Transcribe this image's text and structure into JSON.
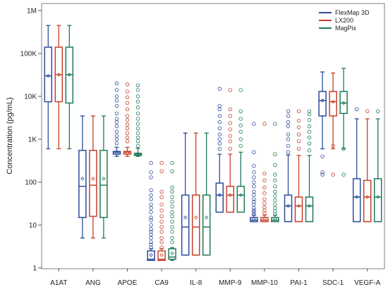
{
  "chart_data": {
    "type": "boxplot",
    "ylabel": "Concentration (pg/mL)",
    "yscale": "log",
    "ylim": [
      1,
      1000000
    ],
    "y_ticks": [
      1,
      10,
      100,
      1000,
      10000,
      100000,
      1000000
    ],
    "y_tick_labels": [
      "1",
      "10",
      "100",
      "1K",
      "10K",
      "100K",
      "1M"
    ],
    "grid": false,
    "legend_position": "top-right",
    "categories": [
      "A1AT",
      "ANG",
      "APOE",
      "CA9",
      "IL-8",
      "MMP-9",
      "MMP-10",
      "PAI-1",
      "SDC-1",
      "VEGF-A"
    ],
    "series": [
      {
        "name": "FlexMap 3D",
        "color": "#2c4c9c",
        "boxes": [
          {
            "whisker_low": 600,
            "q1": 7500,
            "median": 30000,
            "q3": 140000,
            "whisker_high": 450000,
            "mean": 30000,
            "outliers": []
          },
          {
            "whisker_low": 5,
            "q1": 15,
            "median": 80,
            "q3": 550,
            "whisker_high": 3500,
            "mean": 120,
            "outliers": []
          },
          {
            "whisker_low": 400,
            "q1": 450,
            "median": 500,
            "q3": 520,
            "whisker_high": 650,
            "mean": 480,
            "outliers": [
              800,
              1000,
              1200,
              1500,
              2000,
              2500,
              3000,
              4000,
              6000,
              8000,
              10000,
              14000,
              20000
            ]
          },
          {
            "whisker_low": 1.5,
            "q1": 1.5,
            "median": 1.6,
            "q3": 2.5,
            "whisker_high": 2.8,
            "mean": 2,
            "outliers": [
              3,
              3.5,
              4,
              5,
              6,
              7,
              8,
              10,
              13,
              15,
              20,
              25,
              30,
              40,
              50,
              65,
              130,
              170,
              280
            ]
          },
          {
            "whisker_low": 2,
            "q1": 2,
            "median": 9,
            "q3": 50,
            "whisker_high": 1400,
            "mean": 15,
            "outliers": []
          },
          {
            "whisker_low": 20,
            "q1": 20,
            "median": 50,
            "q3": 95,
            "whisker_high": 450,
            "mean": 50,
            "outliers": [
              600,
              800,
              1000,
              1300,
              1800,
              2500,
              3500,
              5000,
              6000,
              15000
            ]
          },
          {
            "whisker_low": 12,
            "q1": 12,
            "median": 13,
            "q3": 15,
            "whisker_high": 17,
            "mean": 14,
            "outliers": [
              18,
              20,
              22,
              25,
              30,
              35,
              40,
              50,
              60,
              80,
              100,
              130,
              170,
              240,
              500,
              2300
            ]
          },
          {
            "whisker_low": 12,
            "q1": 12,
            "median": 28,
            "q3": 50,
            "whisker_high": 430,
            "mean": 28,
            "outliers": [
              500,
              700,
              1000,
              1300,
              2000,
              2500,
              3500,
              4500
            ]
          },
          {
            "whisker_low": 600,
            "q1": 3500,
            "median": 8000,
            "q3": 13000,
            "whisker_high": 37000,
            "mean": 8000,
            "outliers": [
              150,
              170,
              400
            ]
          },
          {
            "whisker_low": 12,
            "q1": 12,
            "median": 45,
            "q3": 120,
            "whisker_high": 3000,
            "mean": 45,
            "outliers": [
              5000
            ]
          }
        ]
      },
      {
        "name": "LX200",
        "color": "#c8402a",
        "boxes": [
          {
            "whisker_low": 600,
            "q1": 7500,
            "median": 32000,
            "q3": 140000,
            "whisker_high": 450000,
            "mean": 32000,
            "outliers": []
          },
          {
            "whisker_low": 5,
            "q1": 16,
            "median": 85,
            "q3": 550,
            "whisker_high": 3500,
            "mean": 120,
            "outliers": []
          },
          {
            "whisker_low": 400,
            "q1": 450,
            "median": 500,
            "q3": 520,
            "whisker_high": 650,
            "mean": 480,
            "outliers": [
              900,
              1100,
              1400,
              1800,
              2200,
              2800,
              3500,
              5000,
              7000,
              9500,
              13000,
              19000
            ]
          },
          {
            "whisker_low": 1.5,
            "q1": 1.5,
            "median": 1.6,
            "q3": 2.5,
            "whisker_high": 2.8,
            "mean": 2,
            "outliers": [
              3,
              4,
              5,
              7,
              9,
              12,
              16,
              22,
              30,
              45,
              60,
              180,
              280
            ]
          },
          {
            "whisker_low": 2,
            "q1": 2,
            "median": 9,
            "q3": 50,
            "whisker_high": 1400,
            "mean": 15,
            "outliers": []
          },
          {
            "whisker_low": 20,
            "q1": 20,
            "median": 50,
            "q3": 80,
            "whisker_high": 450,
            "mean": 50,
            "outliers": [
              600,
              900,
              1200,
              1700,
              2400,
              3500,
              5000,
              14000
            ]
          },
          {
            "whisker_low": 12,
            "q1": 12,
            "median": 13,
            "q3": 15,
            "whisker_high": 17,
            "mean": 14,
            "outliers": [
              19,
              22,
              26,
              32,
              40,
              55,
              75,
              110,
              160,
              2300
            ]
          },
          {
            "whisker_low": 12,
            "q1": 12,
            "median": 28,
            "q3": 45,
            "whisker_high": 420,
            "mean": 28,
            "outliers": [
              600,
              900,
              1300,
              1900,
              2700,
              4500
            ]
          },
          {
            "whisker_low": 600,
            "q1": 3500,
            "median": 7500,
            "q3": 13000,
            "whisker_high": 35000,
            "mean": 7500,
            "outliers": [
              700,
              150
            ]
          },
          {
            "whisker_low": 12,
            "q1": 12,
            "median": 45,
            "q3": 110,
            "whisker_high": 3000,
            "mean": 45,
            "outliers": [
              4500
            ]
          }
        ]
      },
      {
        "name": "MagPix",
        "color": "#1f7a5a",
        "boxes": [
          {
            "whisker_low": 600,
            "q1": 7000,
            "median": 32000,
            "q3": 140000,
            "whisker_high": 450000,
            "mean": 32000,
            "outliers": []
          },
          {
            "whisker_low": 5,
            "q1": 15,
            "median": 85,
            "q3": 550,
            "whisker_high": 3500,
            "mean": 120,
            "outliers": []
          },
          {
            "whisker_low": 400,
            "q1": 420,
            "median": 450,
            "q3": 470,
            "whisker_high": 620,
            "mean": 460,
            "outliers": [
              700,
              900,
              1100,
              1400,
              1800,
              2300,
              3000,
              4000,
              5500,
              7500,
              10000,
              14000,
              18000
            ]
          },
          {
            "whisker_low": 1.5,
            "q1": 1.6,
            "median": 1.8,
            "q3": 2.8,
            "whisker_high": 3,
            "mean": 2.2,
            "outliers": [
              4,
              5,
              7,
              9,
              12,
              16,
              20,
              27,
              35,
              45,
              60,
              75,
              180,
              280
            ]
          },
          {
            "whisker_low": 2,
            "q1": 2,
            "median": 9,
            "q3": 50,
            "whisker_high": 1400,
            "mean": 15,
            "outliers": []
          },
          {
            "whisker_low": 20,
            "q1": 20,
            "median": 50,
            "q3": 80,
            "whisker_high": 500,
            "mean": 50,
            "outliers": [
              700,
              1000,
              1500,
              2100,
              3000,
              4500,
              14000
            ]
          },
          {
            "whisker_low": 12,
            "q1": 12,
            "median": 13,
            "q3": 15,
            "whisker_high": 17,
            "mean": 14,
            "outliers": [
              18,
              21,
              25,
              30,
              38,
              48,
              60,
              80,
              110,
              150,
              250,
              450,
              2300
            ]
          },
          {
            "whisker_low": 12,
            "q1": 12,
            "median": 28,
            "q3": 45,
            "whisker_high": 420,
            "mean": 28,
            "outliers": [
              550,
              800,
              1100,
              1500,
              2000,
              2800,
              3800,
              4500
            ]
          },
          {
            "whisker_low": 600,
            "q1": 4000,
            "median": 7000,
            "q3": 13000,
            "whisker_high": 45000,
            "mean": 7000,
            "outliers": [
              150,
              600
            ]
          },
          {
            "whisker_low": 12,
            "q1": 12,
            "median": 45,
            "q3": 120,
            "whisker_high": 3000,
            "mean": 45,
            "outliers": [
              4500
            ]
          }
        ]
      }
    ]
  }
}
